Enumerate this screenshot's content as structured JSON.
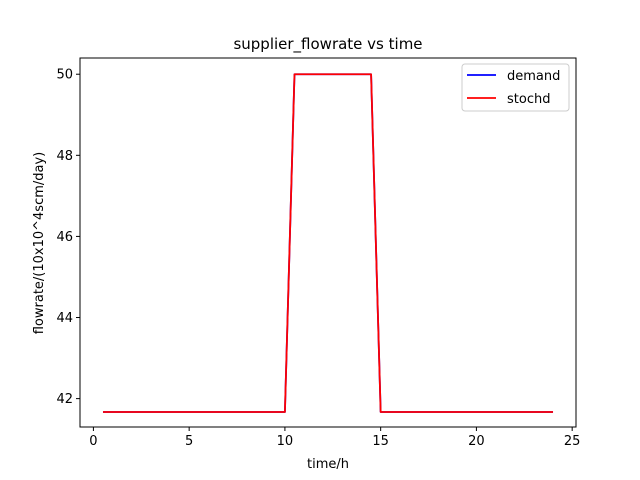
{
  "chart_data": {
    "type": "line",
    "title": "supplier_flowrate vs time",
    "xlabel": "time/h",
    "ylabel": "flowrate/(10x10^4scm/day)",
    "xlim": [
      -0.7,
      25.2
    ],
    "ylim": [
      41.3,
      50.4
    ],
    "xticks": [
      0,
      5,
      10,
      15,
      20,
      25
    ],
    "yticks": [
      42,
      44,
      46,
      48,
      50
    ],
    "grid": false,
    "legend_position": "top-right",
    "x": [
      0.5,
      1,
      1.5,
      2,
      2.5,
      3,
      3.5,
      4,
      4.5,
      5,
      5.5,
      6,
      6.5,
      7,
      7.5,
      8,
      8.5,
      9,
      9.5,
      10,
      10.5,
      11,
      11.5,
      12,
      12.5,
      13,
      13.5,
      14,
      14.5,
      15,
      15.5,
      16,
      16.5,
      17,
      17.5,
      18,
      18.5,
      19,
      19.5,
      20,
      20.5,
      21,
      21.5,
      22,
      22.5,
      23,
      23.5,
      24
    ],
    "series": [
      {
        "name": "demand",
        "color": "#0000ff",
        "values": [
          41.67,
          41.67,
          41.67,
          41.67,
          41.67,
          41.67,
          41.67,
          41.67,
          41.67,
          41.67,
          41.67,
          41.67,
          41.67,
          41.67,
          41.67,
          41.67,
          41.67,
          41.67,
          41.67,
          41.67,
          50,
          50,
          50,
          50,
          50,
          50,
          50,
          50,
          50,
          41.67,
          41.67,
          41.67,
          41.67,
          41.67,
          41.67,
          41.67,
          41.67,
          41.67,
          41.67,
          41.67,
          41.67,
          41.67,
          41.67,
          41.67,
          41.67,
          41.67,
          41.67,
          41.67
        ]
      },
      {
        "name": "stochd",
        "color": "#ff0000",
        "values": [
          41.67,
          41.67,
          41.67,
          41.67,
          41.67,
          41.67,
          41.67,
          41.67,
          41.67,
          41.67,
          41.67,
          41.67,
          41.67,
          41.67,
          41.67,
          41.67,
          41.67,
          41.67,
          41.67,
          41.67,
          50,
          50,
          50,
          50,
          50,
          50,
          50,
          50,
          50,
          41.67,
          41.67,
          41.67,
          41.67,
          41.67,
          41.67,
          41.67,
          41.67,
          41.67,
          41.67,
          41.67,
          41.67,
          41.67,
          41.67,
          41.67,
          41.67,
          41.67,
          41.67,
          41.67
        ]
      }
    ]
  }
}
